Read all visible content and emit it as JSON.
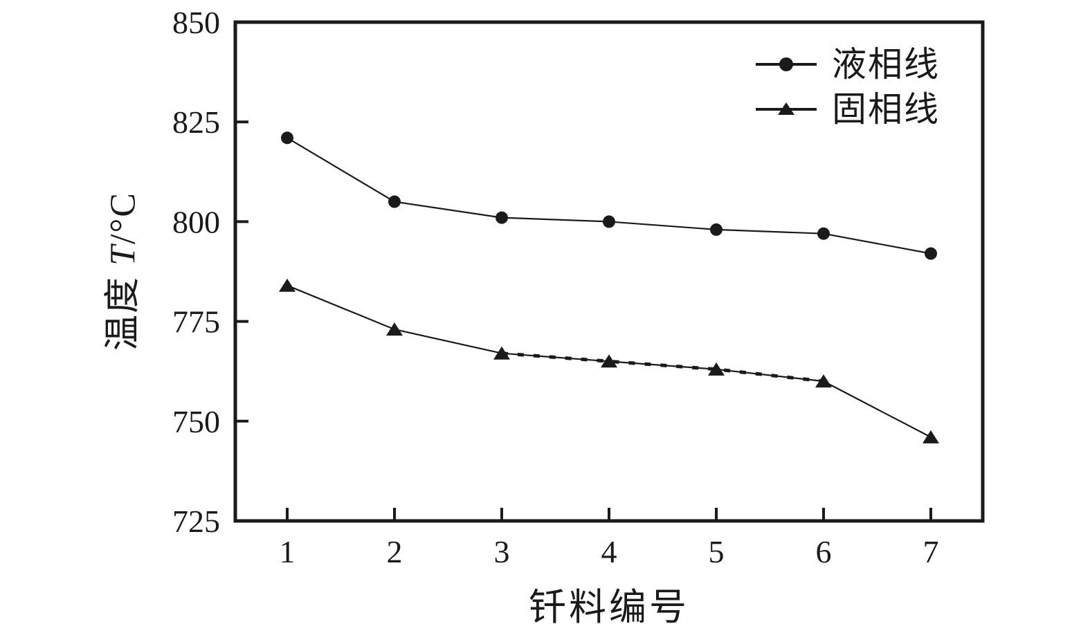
{
  "figure": {
    "background": "#ffffff",
    "ink_color": "#1a1a1a"
  },
  "chart_data": {
    "type": "line",
    "title": "",
    "xlabel": "钎料编号",
    "ylabel": "温度 T/°C",
    "ylabel_parts": {
      "prefix": "温度 ",
      "symbol": "T",
      "suffix": "/°C"
    },
    "x": [
      1,
      2,
      3,
      4,
      5,
      6,
      7
    ],
    "xticks": [
      "1",
      "2",
      "3",
      "4",
      "5",
      "6",
      "7"
    ],
    "yticks": [
      "725",
      "750",
      "775",
      "800",
      "825",
      "850"
    ],
    "ylim": [
      725,
      850
    ],
    "grid": false,
    "legend_position": "top-right",
    "series": [
      {
        "name": "液相线",
        "marker": "circle",
        "line_style": "solid",
        "values": [
          821,
          805,
          801,
          800,
          798,
          797,
          792
        ]
      },
      {
        "name": "固相线",
        "marker": "triangle",
        "line_style": "solid-with-dashed-overlay",
        "dashed_overlay_x_range": [
          3,
          6
        ],
        "values": [
          784,
          773,
          767,
          765,
          763,
          760,
          746
        ]
      }
    ]
  }
}
